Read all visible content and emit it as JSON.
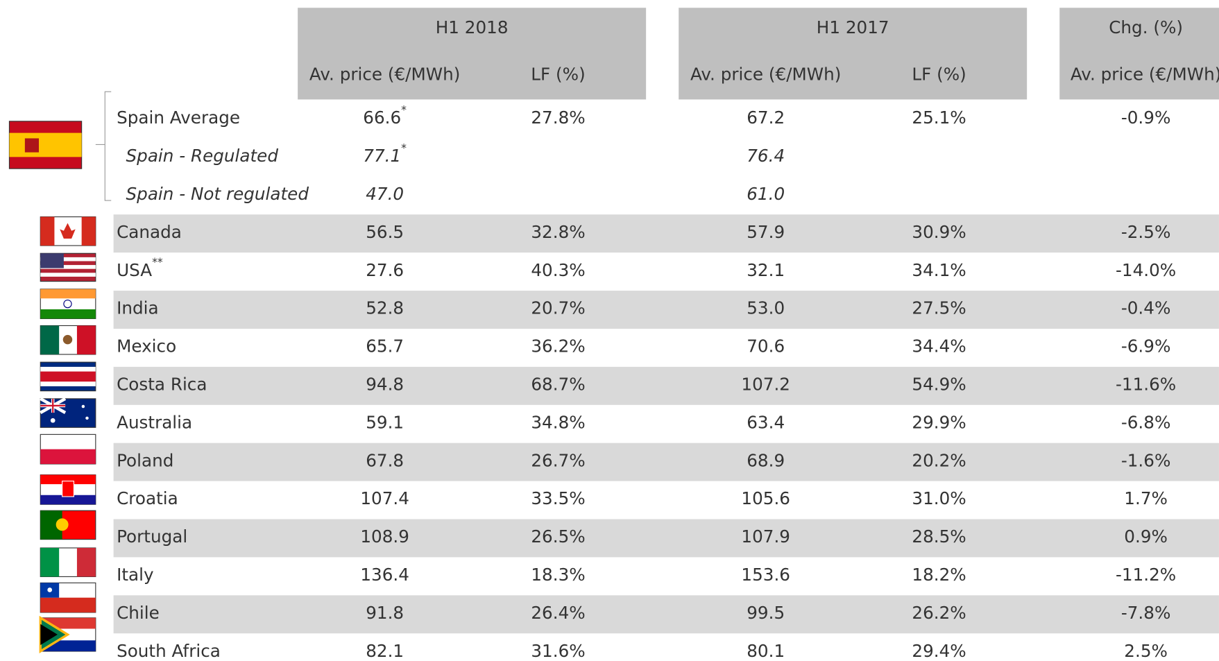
{
  "table": {
    "groups": [
      "H1 2018",
      "H1 2017",
      "Chg. (%)"
    ],
    "subheaders": [
      "Av. price (€/MWh)",
      "LF (%)",
      "Av. price (€/MWh)",
      "LF (%)",
      "Av. price (€/MWh)"
    ],
    "rows": [
      {
        "label": "Spain Average",
        "cells": [
          {
            "text": "66.6",
            "sup": "*"
          },
          "27.8%",
          "67.2",
          "25.1%",
          "-0.9%"
        ]
      },
      {
        "label": "Spain - Regulated",
        "italic": true,
        "cells": [
          {
            "text": "77.1",
            "sup": "*"
          },
          null,
          "76.4",
          null,
          null
        ]
      },
      {
        "label": "Spain - Not regulated",
        "italic": true,
        "cells": [
          "47.0",
          null,
          "61.0",
          null,
          null
        ]
      },
      {
        "label": "Canada",
        "cells": [
          "56.5",
          "32.8%",
          "57.9",
          "30.9%",
          "-2.5%"
        ]
      },
      {
        "label": {
          "text": "USA",
          "sup": "**"
        },
        "cells": [
          "27.6",
          "40.3%",
          "32.1",
          "34.1%",
          "-14.0%"
        ]
      },
      {
        "label": "India",
        "cells": [
          "52.8",
          "20.7%",
          "53.0",
          "27.5%",
          "-0.4%"
        ]
      },
      {
        "label": "Mexico",
        "cells": [
          "65.7",
          "36.2%",
          "70.6",
          "34.4%",
          "-6.9%"
        ]
      },
      {
        "label": "Costa Rica",
        "cells": [
          "94.8",
          "68.7%",
          "107.2",
          "54.9%",
          "-11.6%"
        ]
      },
      {
        "label": "Australia",
        "cells": [
          "59.1",
          "34.8%",
          "63.4",
          "29.9%",
          "-6.8%"
        ]
      },
      {
        "label": "Poland",
        "cells": [
          "67.8",
          "26.7%",
          "68.9",
          "20.2%",
          "-1.6%"
        ]
      },
      {
        "label": "Croatia",
        "cells": [
          "107.4",
          "33.5%",
          "105.6",
          "31.0%",
          "1.7%"
        ]
      },
      {
        "label": "Portugal",
        "cells": [
          "108.9",
          "26.5%",
          "107.9",
          "28.5%",
          "0.9%"
        ]
      },
      {
        "label": "Italy",
        "cells": [
          "136.4",
          "18.3%",
          "153.6",
          "18.2%",
          "-11.2%"
        ]
      },
      {
        "label": "Chile",
        "cells": [
          "91.8",
          "26.4%",
          "99.5",
          "26.2%",
          "-7.8%"
        ]
      },
      {
        "label": "South Africa",
        "cells": [
          "82.1",
          "31.6%",
          "80.1",
          "29.4%",
          "2.5%"
        ]
      }
    ]
  }
}
